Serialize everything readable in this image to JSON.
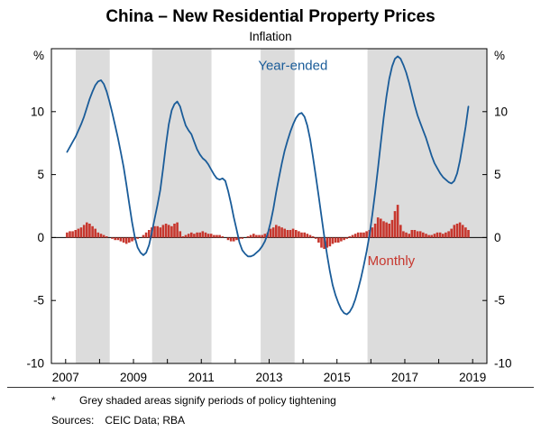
{
  "title": "China – New Residential Property Prices",
  "subtitle": "Inflation",
  "footnote": {
    "marker": "*",
    "text": "Grey shaded areas signify periods of policy tightening"
  },
  "sources": {
    "label": "Sources:",
    "text": "CEIC Data; RBA"
  },
  "colors": {
    "line": "#1A5C99",
    "bars": "#C7372E",
    "band": "#DCDCDC",
    "axis": "#000000"
  },
  "chart_data": {
    "type": "line+bar",
    "title": "China – New Residential Property Prices",
    "subtitle": "Inflation",
    "xlabel": "",
    "ylabel": "",
    "y_unit": "%",
    "xlim": [
      2006.58,
      2019.42
    ],
    "ylim": [
      -10,
      15
    ],
    "xtick_labels": [
      2007,
      2009,
      2011,
      2013,
      2015,
      2017,
      2019
    ],
    "xticks_every_year": true,
    "yticks": [
      -10,
      -5,
      0,
      5,
      10
    ],
    "grid": false,
    "legend_position": "inline-annotations",
    "shaded_bands_note": "periods of policy tightening",
    "shaded_bands": [
      [
        2007.3,
        2008.3
      ],
      [
        2009.55,
        2011.3
      ],
      [
        2012.75,
        2013.75
      ],
      [
        2015.9,
        2019.42
      ]
    ],
    "x_start": {
      "year": 2007,
      "month": 1
    },
    "frequency": "monthly",
    "series": [
      {
        "name": "Year-ended",
        "label": "Year-ended",
        "type": "line",
        "values": [
          6.8,
          7.2,
          7.6,
          8.0,
          8.5,
          9.0,
          9.6,
          10.3,
          11.0,
          11.6,
          12.1,
          12.4,
          12.5,
          12.2,
          11.6,
          10.8,
          9.9,
          8.9,
          7.9,
          6.8,
          5.6,
          4.2,
          2.7,
          1.2,
          0.0,
          -0.8,
          -1.2,
          -1.4,
          -1.2,
          -0.6,
          0.4,
          1.5,
          2.6,
          3.8,
          5.5,
          7.4,
          9.0,
          10.1,
          10.6,
          10.8,
          10.4,
          9.6,
          8.9,
          8.5,
          8.2,
          7.6,
          7.0,
          6.6,
          6.3,
          6.1,
          5.8,
          5.4,
          5.0,
          4.7,
          4.6,
          4.7,
          4.5,
          3.7,
          2.7,
          1.6,
          0.6,
          -0.4,
          -1.0,
          -1.3,
          -1.5,
          -1.5,
          -1.4,
          -1.2,
          -1.0,
          -0.7,
          -0.3,
          0.3,
          1.2,
          2.3,
          3.6,
          4.8,
          5.9,
          6.9,
          7.7,
          8.4,
          9.0,
          9.5,
          9.8,
          9.9,
          9.6,
          8.9,
          7.8,
          6.4,
          4.9,
          3.3,
          1.7,
          0.1,
          -1.4,
          -2.7,
          -3.8,
          -4.6,
          -5.2,
          -5.7,
          -6.0,
          -6.1,
          -5.9,
          -5.5,
          -4.9,
          -4.1,
          -3.2,
          -2.2,
          -1.1,
          0.2,
          1.8,
          3.6,
          5.5,
          7.5,
          9.5,
          11.2,
          12.6,
          13.6,
          14.2,
          14.4,
          14.2,
          13.7,
          13.1,
          12.3,
          11.4,
          10.5,
          9.7,
          9.1,
          8.5,
          7.9,
          7.2,
          6.5,
          5.9,
          5.5,
          5.1,
          4.8,
          4.6,
          4.4,
          4.3,
          4.5,
          5.1,
          6.1,
          7.4,
          8.8,
          10.4
        ]
      },
      {
        "name": "Monthly",
        "label": "Monthly",
        "type": "bar",
        "values": [
          0.4,
          0.5,
          0.5,
          0.6,
          0.7,
          0.8,
          1.0,
          1.2,
          1.1,
          0.9,
          0.7,
          0.4,
          0.3,
          0.2,
          0.1,
          0.0,
          -0.1,
          -0.2,
          -0.2,
          -0.3,
          -0.4,
          -0.5,
          -0.4,
          -0.3,
          -0.2,
          -0.1,
          0.0,
          0.2,
          0.4,
          0.6,
          0.8,
          0.9,
          0.9,
          0.8,
          1.0,
          1.1,
          1.0,
          0.9,
          1.1,
          1.2,
          0.5,
          0.1,
          0.2,
          0.3,
          0.4,
          0.3,
          0.4,
          0.4,
          0.5,
          0.4,
          0.3,
          0.3,
          0.2,
          0.2,
          0.2,
          0.1,
          0.0,
          -0.2,
          -0.3,
          -0.3,
          -0.2,
          -0.1,
          -0.1,
          0.0,
          0.1,
          0.2,
          0.3,
          0.2,
          0.2,
          0.2,
          0.3,
          0.4,
          0.7,
          0.8,
          1.0,
          0.9,
          0.8,
          0.7,
          0.6,
          0.6,
          0.7,
          0.6,
          0.5,
          0.4,
          0.4,
          0.3,
          0.2,
          0.1,
          -0.1,
          -0.4,
          -0.8,
          -0.9,
          -0.8,
          -0.7,
          -0.5,
          -0.4,
          -0.4,
          -0.3,
          -0.2,
          -0.1,
          0.1,
          0.2,
          0.3,
          0.4,
          0.4,
          0.4,
          0.5,
          0.6,
          0.8,
          1.1,
          1.6,
          1.5,
          1.3,
          1.2,
          1.1,
          1.4,
          2.1,
          2.6,
          1.0,
          0.5,
          0.4,
          0.3,
          0.6,
          0.6,
          0.5,
          0.5,
          0.4,
          0.3,
          0.2,
          0.2,
          0.3,
          0.4,
          0.4,
          0.3,
          0.4,
          0.5,
          0.7,
          1.0,
          1.1,
          1.2,
          1.0,
          0.8,
          0.6
        ]
      }
    ]
  }
}
